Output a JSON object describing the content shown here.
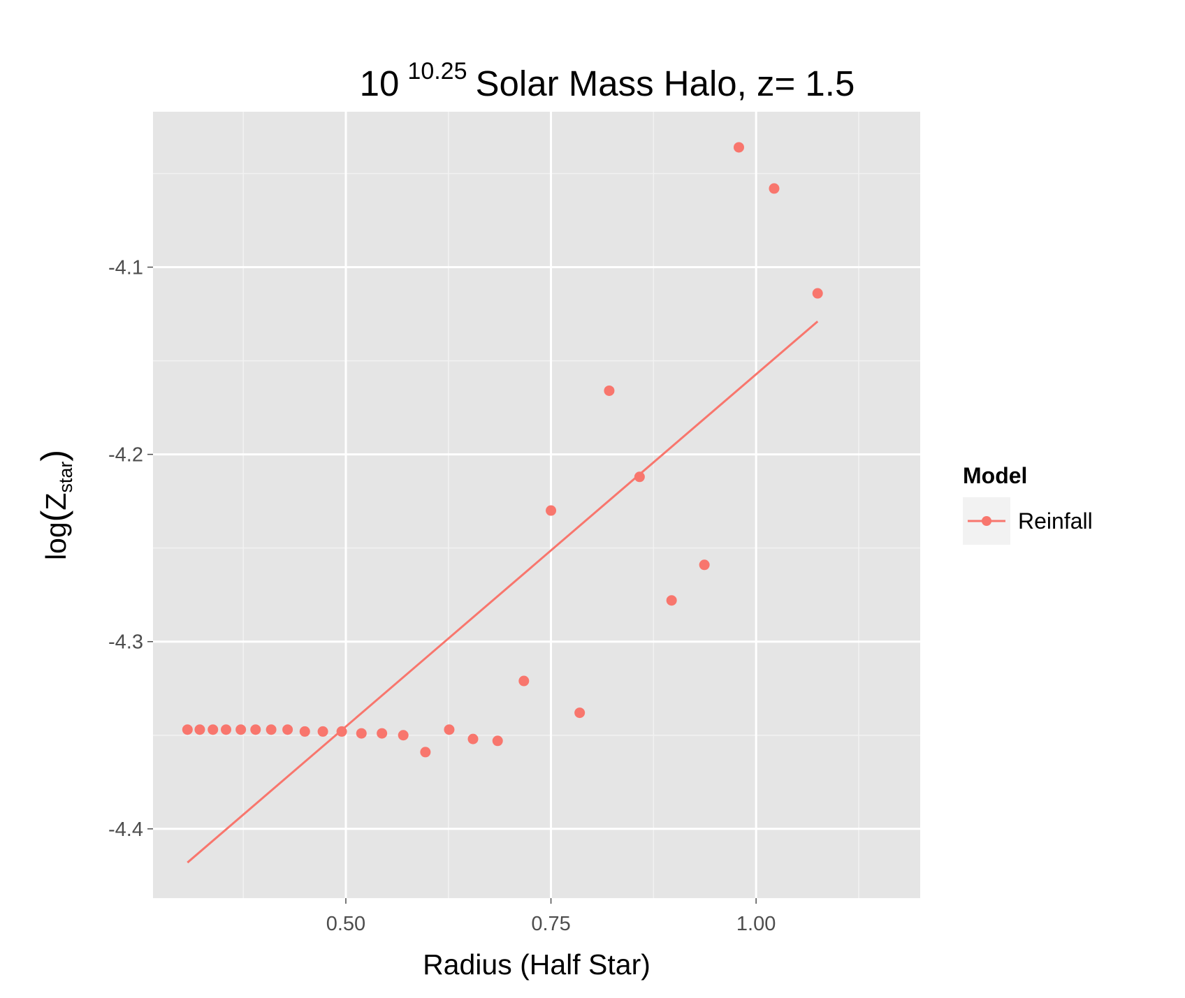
{
  "chart_data": {
    "type": "scatter",
    "title": {
      "base": "10",
      "exponent": "10.25",
      "rest": "Solar Mass Halo, z= 1.5"
    },
    "xlabel": "Radius (Half Star)",
    "ylabel": {
      "prefix": "log",
      "symbol": "Z",
      "subscript": "star"
    },
    "xlim": [
      0.265,
      1.2
    ],
    "ylim": [
      -4.437,
      -4.017
    ],
    "x_ticks": [
      0.5,
      0.75,
      1.0
    ],
    "x_tick_labels": [
      "0.50",
      "0.75",
      "1.00"
    ],
    "y_ticks": [
      -4.4,
      -4.3,
      -4.2,
      -4.1
    ],
    "y_tick_labels": [
      "-4.4",
      "-4.3",
      "-4.2",
      "-4.1"
    ],
    "grid": true,
    "legend": {
      "title": "Model",
      "placement": "right",
      "entries": [
        "Reinfall"
      ]
    },
    "series": [
      {
        "name": "Reinfall",
        "color": "#F8766D",
        "points": {
          "x": [
            0.307,
            0.322,
            0.338,
            0.354,
            0.372,
            0.39,
            0.409,
            0.429,
            0.45,
            0.472,
            0.495,
            0.519,
            0.544,
            0.57,
            0.597,
            0.626,
            0.655,
            0.685,
            0.717,
            0.75,
            0.785,
            0.821,
            0.858,
            0.897,
            0.937,
            0.979,
            1.022,
            1.075
          ],
          "y": [
            -4.347,
            -4.347,
            -4.347,
            -4.347,
            -4.347,
            -4.347,
            -4.347,
            -4.347,
            -4.348,
            -4.348,
            -4.348,
            -4.349,
            -4.349,
            -4.35,
            -4.359,
            -4.347,
            -4.352,
            -4.353,
            -4.321,
            -4.23,
            -4.338,
            -4.166,
            -4.212,
            -4.278,
            -4.259,
            -4.036,
            -4.058,
            -4.114
          ]
        },
        "fit_line": {
          "x": [
            0.307,
            1.075
          ],
          "y": [
            -4.418,
            -4.129
          ]
        }
      }
    ]
  }
}
